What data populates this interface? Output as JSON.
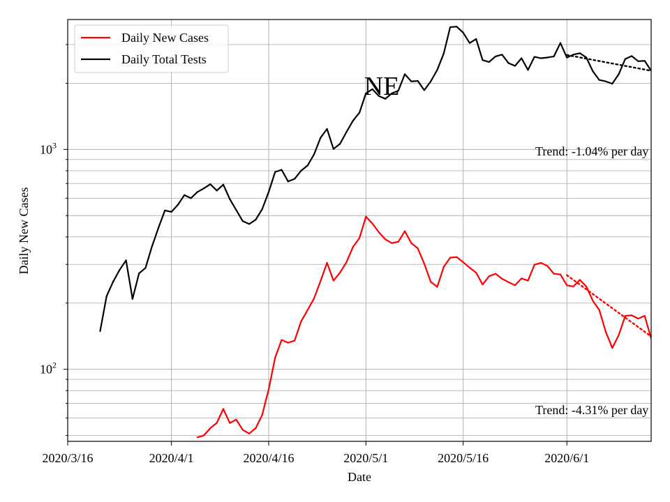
{
  "chart_data": {
    "type": "line",
    "title": "NE",
    "xlabel": "Date",
    "ylabel": "Daily New Cases",
    "yscale": "log",
    "xlim": [
      "2020-03-16",
      "2020-06-14"
    ],
    "ylim": [
      47,
      3900
    ],
    "grid": true,
    "legend_position": "top-left",
    "x_ticks": [
      {
        "date": "2020-03-16",
        "label": "2020/3/16"
      },
      {
        "date": "2020-04-01",
        "label": "2020/4/1"
      },
      {
        "date": "2020-04-16",
        "label": "2020/4/16"
      },
      {
        "date": "2020-05-01",
        "label": "2020/5/1"
      },
      {
        "date": "2020-05-16",
        "label": "2020/5/16"
      },
      {
        "date": "2020-06-01",
        "label": "2020/6/1"
      }
    ],
    "y_ticks": [
      {
        "value": 100,
        "label_base": "10",
        "label_exp": "2"
      },
      {
        "value": 1000,
        "label_base": "10",
        "label_exp": "3"
      }
    ],
    "series": [
      {
        "name": "Daily New Cases",
        "color": "#ff0000",
        "x": [
          "2020-04-05",
          "2020-04-06",
          "2020-04-07",
          "2020-04-08",
          "2020-04-09",
          "2020-04-10",
          "2020-04-11",
          "2020-04-12",
          "2020-04-13",
          "2020-04-14",
          "2020-04-15",
          "2020-04-16",
          "2020-04-17",
          "2020-04-18",
          "2020-04-19",
          "2020-04-20",
          "2020-04-21",
          "2020-04-22",
          "2020-04-23",
          "2020-04-24",
          "2020-04-25",
          "2020-04-26",
          "2020-04-27",
          "2020-04-28",
          "2020-04-29",
          "2020-04-30",
          "2020-05-01",
          "2020-05-02",
          "2020-05-03",
          "2020-05-04",
          "2020-05-05",
          "2020-05-06",
          "2020-05-07",
          "2020-05-08",
          "2020-05-09",
          "2020-05-10",
          "2020-05-11",
          "2020-05-12",
          "2020-05-13",
          "2020-05-14",
          "2020-05-15",
          "2020-05-16",
          "2020-05-17",
          "2020-05-18",
          "2020-05-19",
          "2020-05-20",
          "2020-05-21",
          "2020-05-22",
          "2020-05-23",
          "2020-05-24",
          "2020-05-25",
          "2020-05-26",
          "2020-05-27",
          "2020-05-28",
          "2020-05-29",
          "2020-05-30",
          "2020-05-31",
          "2020-06-01",
          "2020-06-02",
          "2020-06-03",
          "2020-06-04",
          "2020-06-05",
          "2020-06-06",
          "2020-06-07",
          "2020-06-08",
          "2020-06-09",
          "2020-06-10",
          "2020-06-11",
          "2020-06-12",
          "2020-06-13",
          "2020-06-14"
        ],
        "values": [
          49,
          50,
          54,
          57,
          66,
          57,
          59,
          53,
          51,
          54,
          62,
          81,
          113,
          136,
          132,
          135,
          165,
          186,
          210,
          252,
          305,
          253,
          275,
          307,
          360,
          395,
          495,
          460,
          420,
          390,
          375,
          380,
          425,
          375,
          355,
          302,
          250,
          237,
          292,
          322,
          324,
          307,
          290,
          275,
          243,
          265,
          272,
          258,
          249,
          241,
          259,
          253,
          299,
          305,
          295,
          272,
          270,
          241,
          238,
          255,
          238,
          205,
          186,
          148,
          125,
          143,
          175,
          176,
          170,
          175,
          138
        ]
      },
      {
        "name": "Daily Total Tests",
        "color": "#000000",
        "x": [
          "2020-03-21",
          "2020-03-22",
          "2020-03-23",
          "2020-03-24",
          "2020-03-25",
          "2020-03-26",
          "2020-03-27",
          "2020-03-28",
          "2020-03-29",
          "2020-03-30",
          "2020-03-31",
          "2020-04-01",
          "2020-04-02",
          "2020-04-03",
          "2020-04-04",
          "2020-04-05",
          "2020-04-06",
          "2020-04-07",
          "2020-04-08",
          "2020-04-09",
          "2020-04-10",
          "2020-04-11",
          "2020-04-12",
          "2020-04-13",
          "2020-04-14",
          "2020-04-15",
          "2020-04-16",
          "2020-04-17",
          "2020-04-18",
          "2020-04-19",
          "2020-04-20",
          "2020-04-21",
          "2020-04-22",
          "2020-04-23",
          "2020-04-24",
          "2020-04-25",
          "2020-04-26",
          "2020-04-27",
          "2020-04-28",
          "2020-04-29",
          "2020-04-30",
          "2020-05-01",
          "2020-05-02",
          "2020-05-03",
          "2020-05-04",
          "2020-05-05",
          "2020-05-06",
          "2020-05-07",
          "2020-05-08",
          "2020-05-09",
          "2020-05-10",
          "2020-05-11",
          "2020-05-12",
          "2020-05-13",
          "2020-05-14",
          "2020-05-15",
          "2020-05-16",
          "2020-05-17",
          "2020-05-18",
          "2020-05-19",
          "2020-05-20",
          "2020-05-21",
          "2020-05-22",
          "2020-05-23",
          "2020-05-24",
          "2020-05-25",
          "2020-05-26",
          "2020-05-27",
          "2020-05-28",
          "2020-05-29",
          "2020-05-30",
          "2020-05-31",
          "2020-06-01",
          "2020-06-02",
          "2020-06-03",
          "2020-06-04",
          "2020-06-05",
          "2020-06-06",
          "2020-06-07",
          "2020-06-08",
          "2020-06-09",
          "2020-06-10",
          "2020-06-11",
          "2020-06-12",
          "2020-06-13",
          "2020-06-14"
        ],
        "values": [
          149,
          215,
          250,
          283,
          313,
          209,
          273,
          289,
          362,
          440,
          528,
          520,
          560,
          620,
          600,
          640,
          665,
          695,
          650,
          692,
          595,
          530,
          472,
          458,
          479,
          535,
          640,
          790,
          808,
          715,
          735,
          800,
          845,
          950,
          1130,
          1240,
          1005,
          1060,
          1200,
          1350,
          1470,
          1800,
          1880,
          1750,
          1700,
          1800,
          1850,
          2200,
          2040,
          2050,
          1860,
          2040,
          2300,
          2730,
          3600,
          3620,
          3400,
          3050,
          3180,
          2550,
          2500,
          2650,
          2700,
          2470,
          2400,
          2600,
          2300,
          2640,
          2600,
          2620,
          2650,
          3050,
          2620,
          2700,
          2740,
          2620,
          2270,
          2070,
          2040,
          1990,
          2200,
          2580,
          2660,
          2520,
          2530,
          2280
        ]
      }
    ],
    "trends": [
      {
        "series": "Daily Total Tests",
        "color": "#000000",
        "x": [
          "2020-06-01",
          "2020-06-14"
        ],
        "values": [
          2690,
          2280
        ],
        "label": "Trend: -1.04% per day",
        "label_at": [
          762,
          216
        ]
      },
      {
        "series": "Daily New Cases",
        "color": "#ff0000",
        "x": [
          "2020-06-01",
          "2020-06-14"
        ],
        "values": [
          268,
          141
        ],
        "label": "Trend: -4.31% per day",
        "label_at": [
          762,
          587
        ]
      }
    ]
  }
}
